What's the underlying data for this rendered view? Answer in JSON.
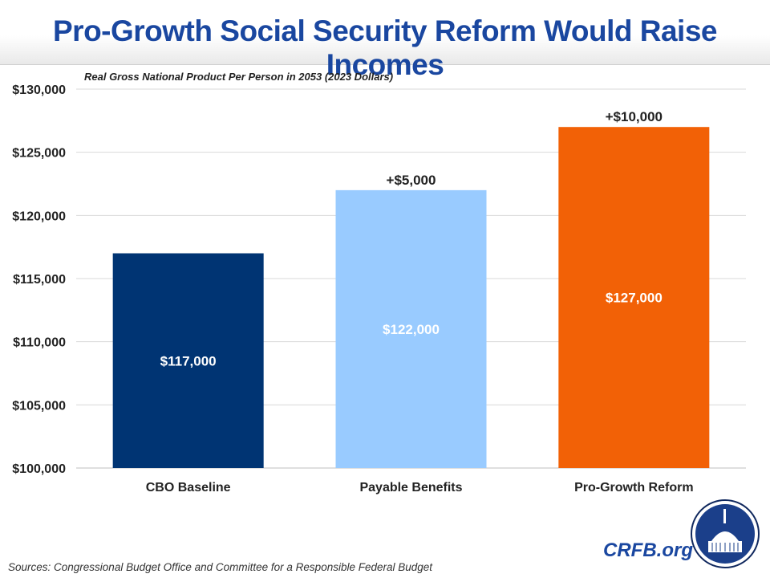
{
  "header": {
    "title": "Pro-Growth Social Security Reform Would Raise Incomes"
  },
  "footer": {
    "sources": "Sources: Congressional Budget Office and Committee for a Responsible Federal Budget",
    "brand": "CRFB.org"
  },
  "colors": {
    "title": "#1a47a0",
    "bar1": "#003473",
    "bar2": "#99cbff",
    "bar3": "#f26106"
  },
  "icons": {
    "logo": "capitol-dome-seal-icon"
  },
  "chart_data": {
    "type": "bar",
    "title": "Real Gross National Product Per Person in 2053 (2023 Dollars)",
    "categories": [
      "CBO Baseline",
      "Payable Benefits",
      "Pro-Growth Reform"
    ],
    "values": [
      117000,
      122000,
      127000
    ],
    "value_labels": [
      "$117,000",
      "$122,000",
      "$127,000"
    ],
    "annotations": [
      "",
      "+$5,000",
      "+$10,000"
    ],
    "bar_colors": [
      "#003473",
      "#99cbff",
      "#f26106"
    ],
    "ylim": [
      100000,
      130000
    ],
    "yticks": [
      100000,
      105000,
      110000,
      115000,
      120000,
      125000,
      130000
    ],
    "ytick_labels": [
      "$100,000",
      "$105,000",
      "$110,000",
      "$115,000",
      "$120,000",
      "$125,000",
      "$130,000"
    ],
    "grid": true,
    "legend": "none"
  }
}
